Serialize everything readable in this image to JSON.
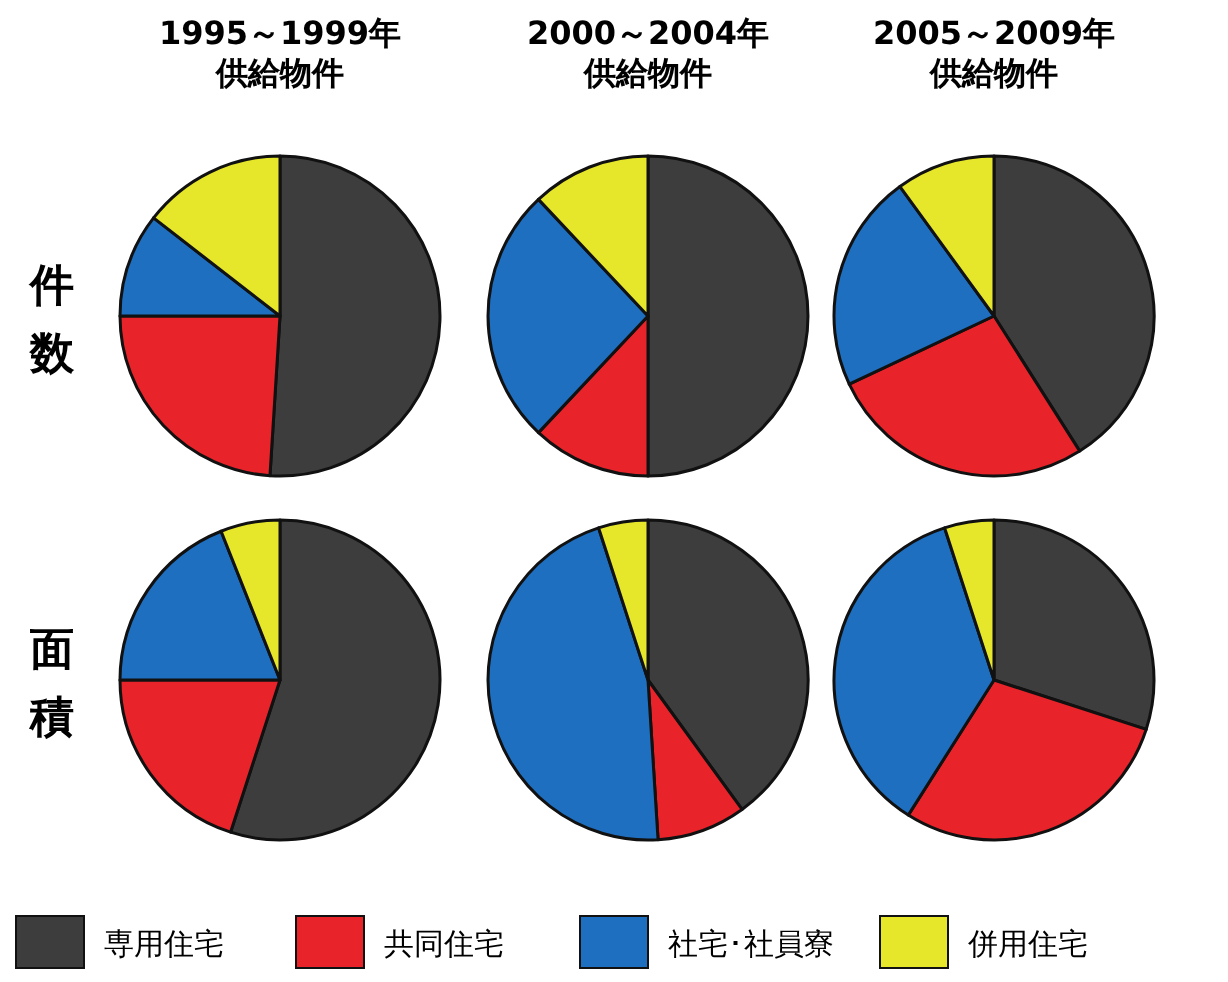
{
  "chart_data": [
    {
      "type": "pie",
      "title": "1995～1999年",
      "subtitle": "供給物件",
      "ylabel": "件数",
      "categories": [
        "専用住宅",
        "共同住宅",
        "社宅･社員寮",
        "併用住宅"
      ],
      "values": [
        51,
        24,
        10.5,
        14.5
      ],
      "colors": [
        "#3d3d3d",
        "#e8242a",
        "#1f6fc0",
        "#e6e62a"
      ],
      "legend": "bottom"
    },
    {
      "type": "pie",
      "title": "2000～2004年",
      "subtitle": "供給物件",
      "categories": [
        null,
        null,
        null,
        null
      ],
      "values": [
        50,
        12,
        26,
        12
      ],
      "colors": [
        "#3d3d3d",
        "#e8242a",
        "#1f6fc0",
        "#e6e62a"
      ]
    },
    {
      "type": "pie",
      "title": "2005～2009年",
      "subtitle": "供給物件",
      "categories": [
        null,
        null,
        null,
        null
      ],
      "values": [
        41,
        27,
        22,
        10
      ],
      "colors": [
        "#3d3d3d",
        "#e8242a",
        "#1f6fc0",
        "#e6e62a"
      ]
    },
    {
      "type": "pie",
      "ylabel": "面積",
      "categories": [
        null,
        null,
        null,
        null
      ],
      "values": [
        55,
        20,
        19,
        6
      ],
      "colors": [
        "#3d3d3d",
        "#e8242a",
        "#1f6fc0",
        "#e6e62a"
      ]
    },
    {
      "type": "pie",
      "categories": [
        null,
        null,
        null,
        null
      ],
      "values": [
        40,
        9,
        46,
        5
      ],
      "colors": [
        "#3d3d3d",
        "#e8242a",
        "#1f6fc0",
        "#e6e62a"
      ]
    },
    {
      "type": "pie",
      "categories": [
        null,
        null,
        null,
        null
      ],
      "values": [
        30,
        29,
        36,
        5
      ],
      "colors": [
        "#3d3d3d",
        "#e8242a",
        "#1f6fc0",
        "#e6e62a"
      ]
    }
  ]
}
